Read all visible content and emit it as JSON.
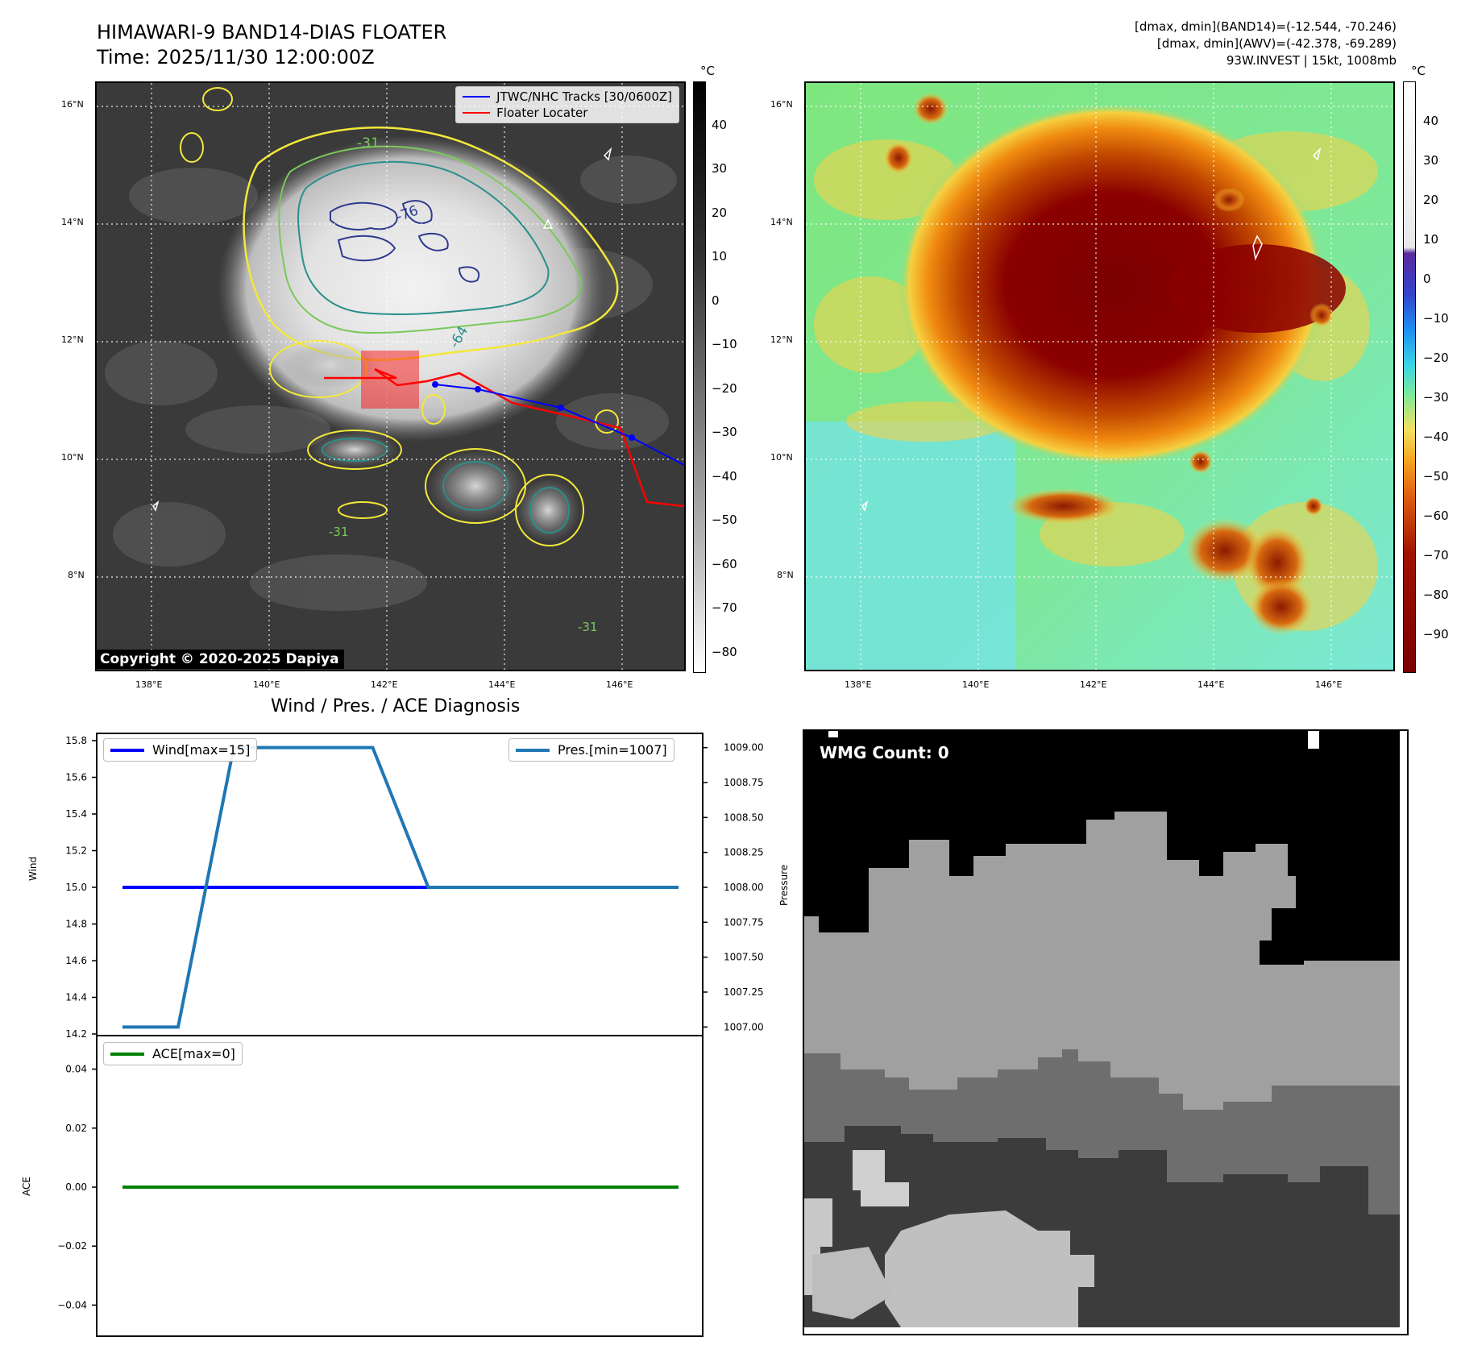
{
  "header": {
    "title": "HIMAWARI-9 BAND14-DIAS FLOATER",
    "time": "Time: 2025/11/30 12:00:00Z",
    "info_line1": "[dmax, dmin](BAND14)=(-12.544, -70.246)",
    "info_line2": "[dmax, dmin](AWV)=(-42.378, -69.289)",
    "info_line3": "93W.INVEST | 15kt, 1008mb"
  },
  "maps": {
    "lat_labels": [
      "16°N",
      "14°N",
      "12°N",
      "10°N",
      "8°N"
    ],
    "lon_labels": [
      "138°E",
      "140°E",
      "142°E",
      "144°E",
      "146°E"
    ],
    "copyright": "Copyright © 2020-2025 Dapiya",
    "legend_tracks": "JTWC/NHC Tracks [30/0600Z]",
    "legend_floater": "Floater Locater",
    "contour_labels": [
      "-31",
      "-64",
      "-76"
    ],
    "unit": "°C",
    "cb1_ticks": [
      "40",
      "30",
      "20",
      "10",
      "0",
      "−10",
      "−20",
      "−30",
      "−40",
      "−50",
      "−60",
      "−70",
      "−80"
    ],
    "cb2_ticks": [
      "40",
      "30",
      "20",
      "10",
      "0",
      "−10",
      "−20",
      "−30",
      "−40",
      "−50",
      "−60",
      "−70",
      "−80",
      "−90"
    ],
    "colors": {
      "track": "#0000ff",
      "floater": "#ff0000",
      "contour_yellow": "#f3e83a",
      "contour_green": "#7bc95a",
      "contour_teal": "#2a8f8a",
      "contour_navy": "#2e3a8c"
    }
  },
  "diagnosis": {
    "title": "Wind / Pres. / ACE Diagnosis",
    "wind_ylabel": "Wind",
    "pres_ylabel": "Pressure",
    "ace_ylabel": "ACE",
    "wmg": "WMG Count: 0"
  },
  "chart_data": [
    {
      "type": "line",
      "title": "Wind / Pres. / ACE Diagnosis",
      "ylabel": "Wind",
      "ylim": [
        14.2,
        15.8
      ],
      "yticks": [
        "15.8",
        "15.6",
        "15.4",
        "15.2",
        "15.0",
        "14.8",
        "14.6",
        "14.4",
        "14.2"
      ],
      "x": [
        0,
        1,
        2,
        3,
        4,
        5,
        6,
        7,
        8,
        9
      ],
      "series": [
        {
          "name": "Wind[max=15]",
          "color": "#0000ff",
          "values": [
            15,
            15,
            15,
            15,
            15,
            15,
            15,
            15,
            15,
            15
          ]
        }
      ]
    },
    {
      "type": "line",
      "ylabel": "Pressure",
      "ylim": [
        1006.95,
        1009.05
      ],
      "yticks": [
        "1009.00",
        "1008.75",
        "1008.50",
        "1008.25",
        "1008.00",
        "1007.75",
        "1007.50",
        "1007.25",
        "1007.00"
      ],
      "x": [
        0,
        1,
        2,
        3,
        4,
        5,
        6,
        7,
        8,
        9
      ],
      "series": [
        {
          "name": "Pres.[min=1007]",
          "color": "#1f77b4",
          "values": [
            1007,
            1007,
            1009,
            1009,
            1009,
            1008,
            1008,
            1008,
            1008,
            1008
          ]
        }
      ]
    },
    {
      "type": "line",
      "ylabel": "ACE",
      "ylim": [
        -0.05,
        0.05
      ],
      "yticks": [
        "0.04",
        "0.02",
        "0.00",
        "−0.02",
        "−0.04"
      ],
      "x": [
        0,
        1,
        2,
        3,
        4,
        5,
        6,
        7,
        8,
        9
      ],
      "series": [
        {
          "name": "ACE[max=0]",
          "color": "#008000",
          "values": [
            0,
            0,
            0,
            0,
            0,
            0,
            0,
            0,
            0,
            0
          ]
        }
      ]
    }
  ]
}
